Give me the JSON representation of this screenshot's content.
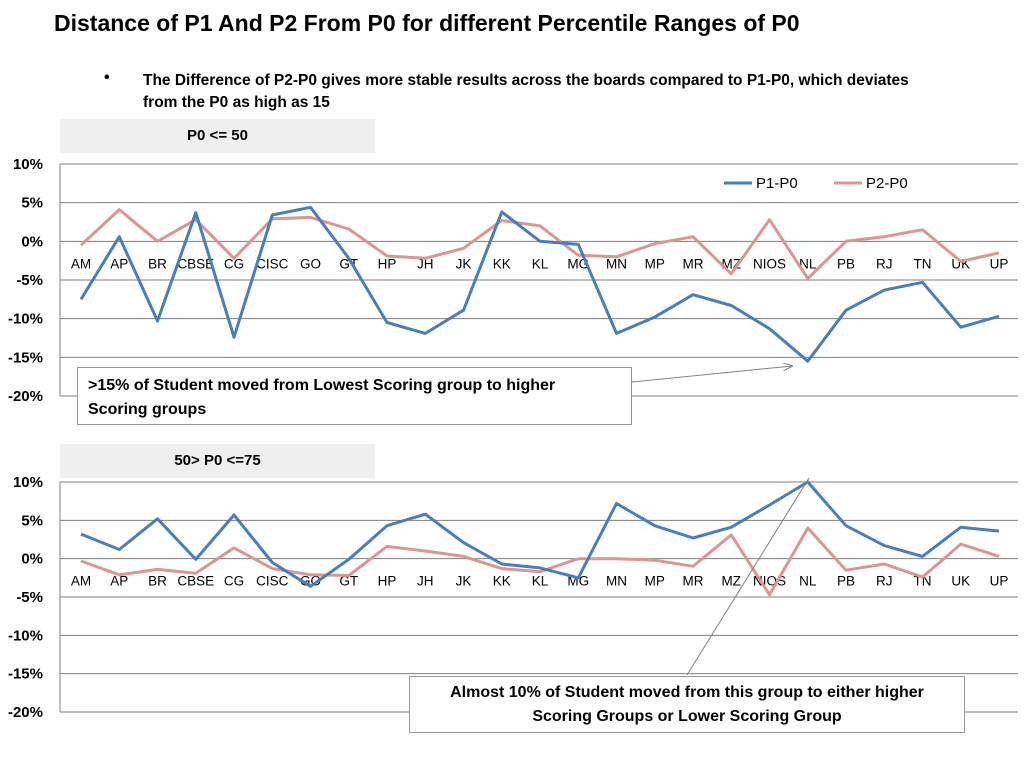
{
  "slide": {
    "title": "Distance of P1 And P2 From  P0 for different Percentile Ranges of P0",
    "bullet": "The Difference of P2-P0 gives more stable results across the boards compared to P1-P0, which deviates from the P0 as high as 15"
  },
  "panels": [
    {
      "range_label": "P0 <= 50",
      "annotation": ">15% of Student moved from Lowest Scoring group to higher Scoring groups"
    },
    {
      "range_label": "50> P0 <=75",
      "annotation": "Almost 10% of Student moved from this group to either  higher Scoring Groups or Lower Scoring  Group"
    }
  ],
  "colors": {
    "p1": "#4a7ebb",
    "p2": "#d99694",
    "grid": "#7f7f7f",
    "arrow": "#808080"
  },
  "chart_data": [
    {
      "type": "line",
      "title": "",
      "categories": [
        "AM",
        "AP",
        "BR",
        "CBSE",
        "CG",
        "CISC",
        "GO",
        "GT",
        "HP",
        "JH",
        "JK",
        "KK",
        "KL",
        "MG",
        "MN",
        "MP",
        "MR",
        "MZ",
        "NIOS",
        "NL",
        "PB",
        "RJ",
        "TN",
        "UK",
        "UP"
      ],
      "series": [
        {
          "name": "P1-P0",
          "values": [
            -7.5,
            0.6,
            -10.3,
            3.7,
            -12.4,
            3.4,
            4.4,
            -2.2,
            -10.5,
            -11.9,
            -8.9,
            3.8,
            0.0,
            -0.4,
            -11.9,
            -9.8,
            -6.9,
            -8.3,
            -11.3,
            -15.5,
            -8.9,
            -6.3,
            -5.3,
            -11.1,
            -9.7
          ]
        },
        {
          "name": "P2-P0",
          "values": [
            -0.5,
            4.1,
            0.0,
            2.8,
            -2.2,
            2.9,
            3.1,
            1.6,
            -1.9,
            -2.2,
            -0.9,
            2.7,
            2.0,
            -1.8,
            -2.0,
            -0.3,
            0.6,
            -4.2,
            2.8,
            -4.8,
            0.0,
            0.6,
            1.5,
            -2.6,
            -1.5
          ]
        }
      ],
      "ylim": [
        -20,
        10
      ],
      "yticks": [
        "10%",
        "5%",
        "0%",
        "-5%",
        "-10%",
        "-15%",
        "-20%"
      ],
      "grid": true,
      "legend": "top-right"
    },
    {
      "type": "line",
      "title": "",
      "categories": [
        "AM",
        "AP",
        "BR",
        "CBSE",
        "CG",
        "CISC",
        "GO",
        "GT",
        "HP",
        "JH",
        "JK",
        "KK",
        "KL",
        "MG",
        "MN",
        "MP",
        "MR",
        "MZ",
        "NIOS",
        "NL",
        "PB",
        "RJ",
        "TN",
        "UK",
        "UP"
      ],
      "series": [
        {
          "name": "P1-P0",
          "values": [
            3.2,
            1.2,
            5.2,
            -0.1,
            5.7,
            -0.5,
            -3.6,
            -0.1,
            4.3,
            5.8,
            2.1,
            -0.7,
            -1.2,
            -2.5,
            7.2,
            4.3,
            2.7,
            4.1,
            7.0,
            10.0,
            4.3,
            1.7,
            0.3,
            4.1,
            3.6
          ]
        },
        {
          "name": "P2-P0",
          "values": [
            -0.3,
            -2.1,
            -1.4,
            -1.9,
            1.4,
            -1.3,
            -2.1,
            -2.2,
            1.6,
            1.0,
            0.3,
            -1.3,
            -1.7,
            0.0,
            0.0,
            -0.2,
            -1.0,
            3.1,
            -4.7,
            4.0,
            -1.5,
            -0.7,
            -2.4,
            1.9,
            0.3
          ]
        }
      ],
      "ylim": [
        -20,
        10
      ],
      "yticks": [
        "10%",
        "5%",
        "0%",
        "-5%",
        "-10%",
        "-15%",
        "-20%"
      ],
      "grid": true,
      "legend": "none"
    }
  ]
}
